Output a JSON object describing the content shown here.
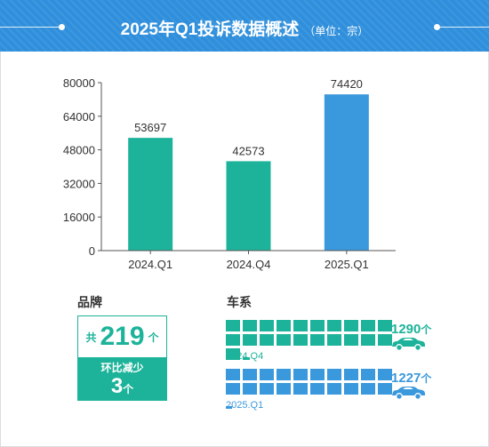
{
  "header": {
    "title": "2025年Q1投诉数据概述",
    "unit": "（单位：宗）"
  },
  "chart_data": {
    "type": "bar",
    "categories": [
      "2024.Q1",
      "2024.Q4",
      "2025.Q1"
    ],
    "values": [
      53697,
      42573,
      74420
    ],
    "value_labels": [
      "53697",
      "42573",
      "74420"
    ],
    "colors": [
      "#1db39a",
      "#1db39a",
      "#3a98dc"
    ],
    "yticks": [
      0,
      16000,
      32000,
      48000,
      64000,
      80000
    ],
    "ytick_labels": [
      "0",
      "16000",
      "32000",
      "48000",
      "64000",
      "80000"
    ],
    "ylim": [
      0,
      80000
    ],
    "title": "",
    "xlabel": "",
    "ylabel": "",
    "grid": false
  },
  "brand": {
    "title": "品牌",
    "prefix": "共",
    "count": "219",
    "unit": "个",
    "change_label": "环比减少",
    "change_value": "3",
    "change_unit": "个"
  },
  "series_section": {
    "title": "车系",
    "rows": [
      {
        "period": "2024.Q4",
        "count": "1290",
        "unit": "个",
        "value": 1290,
        "color": "#1db39a",
        "label_color": "#1db39a"
      },
      {
        "period": "2025.Q1",
        "count": "1227",
        "unit": "个",
        "value": 1227,
        "color": "#3a98dc",
        "label_color": "#3a98dc"
      }
    ]
  }
}
